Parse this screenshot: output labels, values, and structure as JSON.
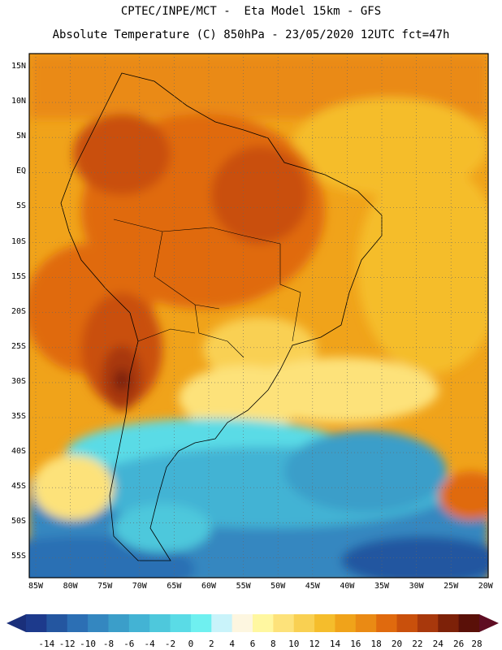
{
  "header": {
    "line1": "CPTEC/INPE/MCT -  Eta Model 15km - GFS",
    "line2": "Absolute Temperature (C) 850hPa - 23/05/2020 12UTC fct=47h"
  },
  "axes": {
    "lat_labels": [
      "15N",
      "10N",
      "5N",
      "EQ",
      "5S",
      "10S",
      "15S",
      "20S",
      "25S",
      "30S",
      "35S",
      "40S",
      "45S",
      "50S",
      "55S"
    ],
    "lon_labels": [
      "85W",
      "80W",
      "75W",
      "70W",
      "65W",
      "60W",
      "55W",
      "50W",
      "45W",
      "40W",
      "35W",
      "30W",
      "25W",
      "20W"
    ]
  },
  "colorbar": {
    "labels": [
      "-14",
      "-12",
      "-10",
      "-8",
      "-6",
      "-4",
      "-2",
      "0",
      "2",
      "4",
      "6",
      "8",
      "10",
      "12",
      "14",
      "16",
      "18",
      "20",
      "22",
      "24",
      "26",
      "28"
    ],
    "colors": [
      "#1d3a8c",
      "#2456a0",
      "#2c6fb4",
      "#3487c0",
      "#3b9ec9",
      "#43b3d4",
      "#4ec8dc",
      "#5adbe6",
      "#6ff0f0",
      "#c9f3fa",
      "#fdf6e0",
      "#fff7a0",
      "#fde27a",
      "#f9d052",
      "#f5bd2c",
      "#f0a31a",
      "#ea8a14",
      "#e06a0e",
      "#c9500c",
      "#a8380c",
      "#7d2108",
      "#5a1008"
    ],
    "min_color": "#1a2f7a",
    "max_color": "#5e0d22"
  }
}
